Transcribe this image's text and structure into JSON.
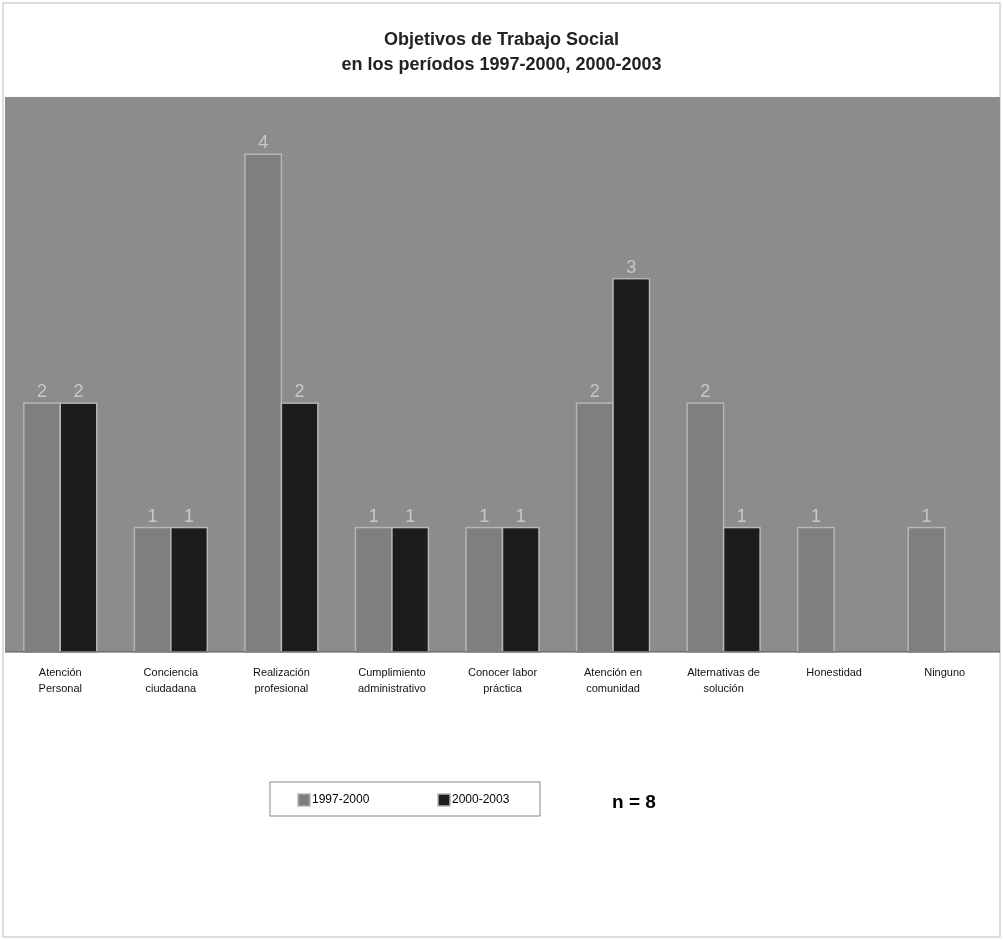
{
  "chart_data": {
    "type": "bar",
    "title": "Objetivos de Trabajo Social\nen los períodos 1997-2000, 2000-2003",
    "categories": [
      "Atención Personal",
      "Conciencia ciudadana",
      "Realización profesional",
      "Cumplimiento administrativo",
      "Conocer labor práctica",
      "Atención en comunidad",
      "Alternativas de solución",
      "Honestidad",
      "Ninguno"
    ],
    "series": [
      {
        "name": "1997-2000",
        "color": "#7f7f7f",
        "values": [
          2,
          1,
          4,
          1,
          1,
          2,
          2,
          1,
          1
        ]
      },
      {
        "name": "2000-2003",
        "color": "#1c1c1c",
        "values": [
          2,
          1,
          2,
          1,
          1,
          3,
          1,
          null,
          null
        ]
      }
    ],
    "data_labels": true,
    "legend": "bottom",
    "annotations": [
      "n = 8"
    ]
  }
}
